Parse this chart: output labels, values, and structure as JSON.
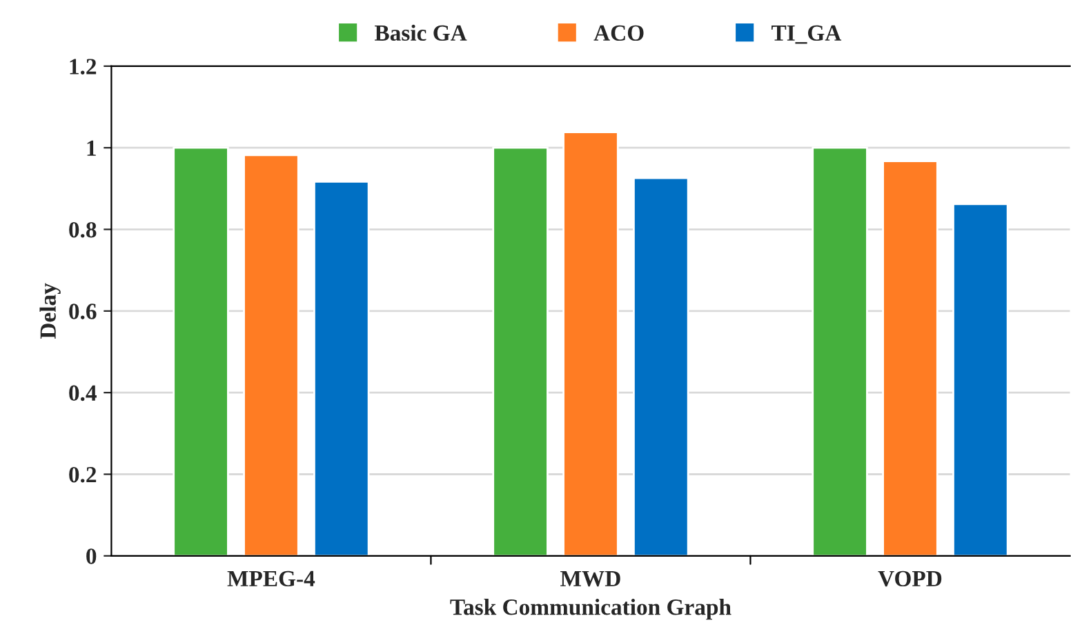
{
  "chart_data": {
    "type": "bar",
    "xlabel": "Task Communication Graph",
    "ylabel": "Delay",
    "categories": [
      "MPEG-4",
      "MWD",
      "VOPD"
    ],
    "series": [
      {
        "name": "Basic GA",
        "color": "#45b03d",
        "values": [
          1.0,
          1.0,
          1.0
        ]
      },
      {
        "name": "ACO",
        "color": "#ff7c23",
        "values": [
          0.982,
          1.038,
          0.967
        ]
      },
      {
        "name": "TI_GA",
        "color": "#0070c4",
        "values": [
          0.917,
          0.926,
          0.862
        ]
      }
    ],
    "ylim": [
      0,
      1.2
    ],
    "yticks": [
      0,
      0.2,
      0.4,
      0.6,
      0.8,
      1,
      1.2
    ],
    "grid": "y",
    "legend": "top"
  }
}
